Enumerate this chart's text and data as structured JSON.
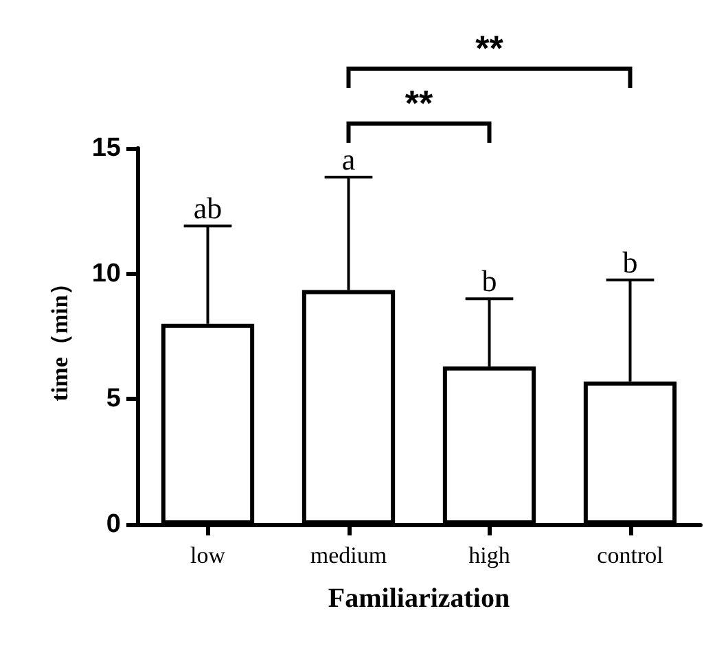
{
  "chart_data": {
    "type": "bar",
    "xlabel": "Familiarization",
    "ylabel": "time（min）",
    "categories": [
      "low",
      "medium",
      "high",
      "control"
    ],
    "values": [
      8.0,
      9.35,
      6.3,
      5.7
    ],
    "errors": [
      [
        8.0,
        11.9
      ],
      [
        9.35,
        13.85
      ],
      [
        6.3,
        9.0
      ],
      [
        5.7,
        9.75
      ]
    ],
    "color": "#ffffff",
    "ylim": [
      0,
      15
    ],
    "yticks": [
      0,
      5,
      10,
      15
    ],
    "grid": false,
    "annotations": [
      {
        "text": "ab",
        "x": "low",
        "y": 11.9
      },
      {
        "text": "a",
        "x": "medium",
        "y": 13.85
      },
      {
        "text": "b",
        "x": "high",
        "y": 9.0
      },
      {
        "text": "b",
        "x": "control",
        "y": 9.75
      },
      "**",
      "**"
    ]
  }
}
